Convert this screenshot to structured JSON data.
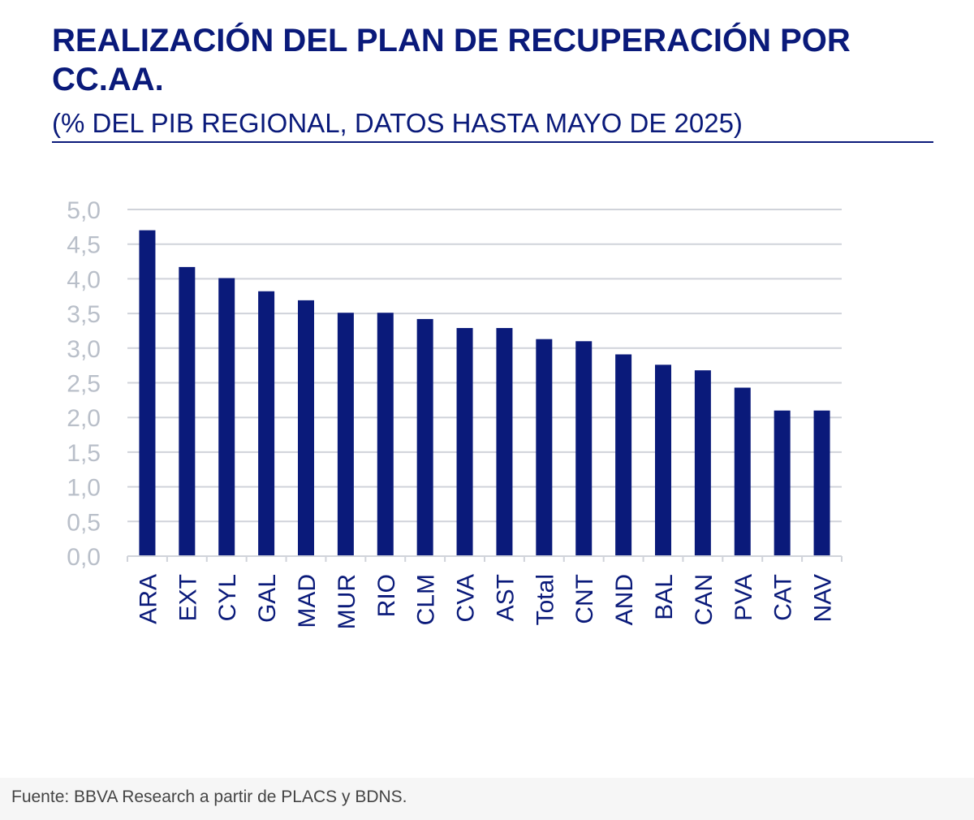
{
  "header": {
    "title": "REALIZACIÓN DEL PLAN DE RECUPERACIÓN POR CC.AA.",
    "subtitle": "(% DEL PIB REGIONAL, DATOS HASTA MAYO DE 2025)"
  },
  "footer": {
    "source": "Fuente: BBVA Research a partir de PLACS y BDNS."
  },
  "colors": {
    "bar": "#0a1a7a",
    "title": "#0a1a7a",
    "grid": "#d0d3da",
    "tick_label": "#b9bfc9",
    "category_label": "#0a1a7a"
  },
  "chart_data": {
    "type": "bar",
    "title": "REALIZACIÓN DEL PLAN DE RECUPERACIÓN POR CC.AA.",
    "subtitle": "(% DEL PIB REGIONAL, DATOS HASTA MAYO DE 2025)",
    "xlabel": "",
    "ylabel": "",
    "categories": [
      "ARA",
      "EXT",
      "CYL",
      "GAL",
      "MAD",
      "MUR",
      "RIO",
      "CLM",
      "CVA",
      "AST",
      "Total",
      "CNT",
      "AND",
      "BAL",
      "CAN",
      "PVA",
      "CAT",
      "NAV"
    ],
    "values": [
      4.7,
      4.17,
      4.01,
      3.82,
      3.69,
      3.51,
      3.51,
      3.42,
      3.29,
      3.29,
      3.13,
      3.1,
      2.91,
      2.76,
      2.68,
      2.43,
      2.1,
      2.1
    ],
    "ylim": [
      0,
      5
    ],
    "yticks": [
      "0,0",
      "0,5",
      "1,0",
      "1,5",
      "2,0",
      "2,5",
      "3,0",
      "3,5",
      "4,0",
      "4,5",
      "5,0"
    ],
    "grid": true,
    "legend": "none"
  }
}
